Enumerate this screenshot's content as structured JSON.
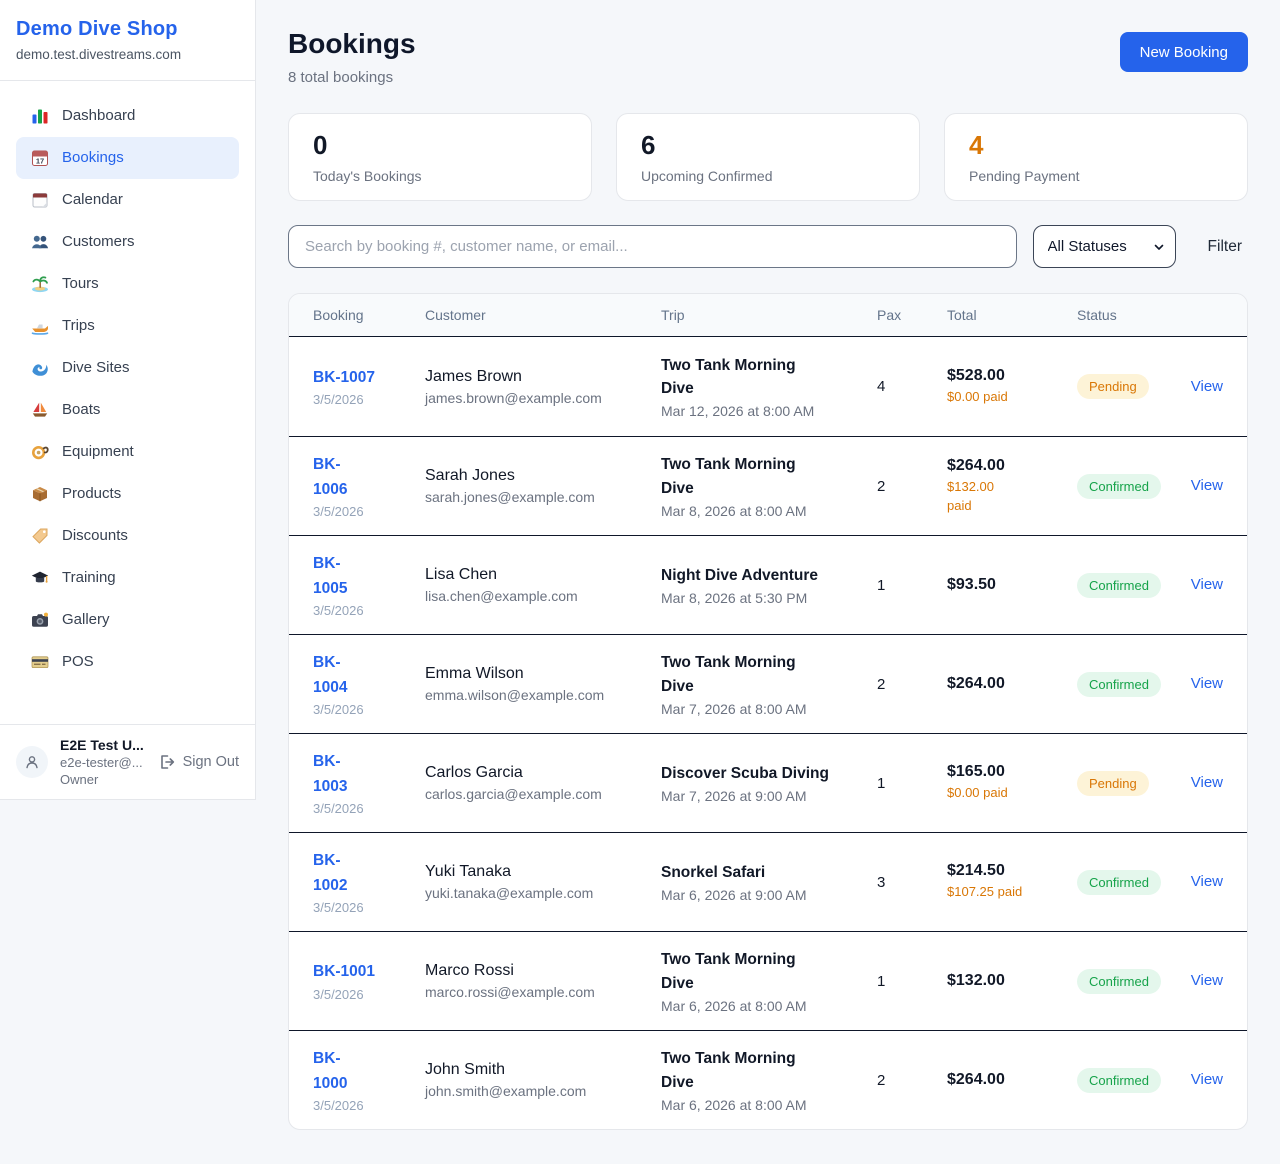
{
  "sidebar": {
    "title": "Demo Dive Shop",
    "subtitle": "demo.test.divestreams.com",
    "items": [
      {
        "icon": "dashboard-icon",
        "label": "Dashboard",
        "active": false
      },
      {
        "icon": "bookings-icon",
        "label": "Bookings",
        "active": true
      },
      {
        "icon": "calendar-icon",
        "label": "Calendar",
        "active": false
      },
      {
        "icon": "customers-icon",
        "label": "Customers",
        "active": false
      },
      {
        "icon": "tours-icon",
        "label": "Tours",
        "active": false
      },
      {
        "icon": "trips-icon",
        "label": "Trips",
        "active": false
      },
      {
        "icon": "dive-sites-icon",
        "label": "Dive Sites",
        "active": false
      },
      {
        "icon": "boats-icon",
        "label": "Boats",
        "active": false
      },
      {
        "icon": "equipment-icon",
        "label": "Equipment",
        "active": false
      },
      {
        "icon": "products-icon",
        "label": "Products",
        "active": false
      },
      {
        "icon": "discounts-icon",
        "label": "Discounts",
        "active": false
      },
      {
        "icon": "training-icon",
        "label": "Training",
        "active": false
      },
      {
        "icon": "gallery-icon",
        "label": "Gallery",
        "active": false
      },
      {
        "icon": "pos-icon",
        "label": "POS",
        "active": false
      }
    ],
    "user": {
      "name": "E2E Test U...",
      "email": "e2e-tester@...",
      "role": "Owner",
      "sign_out_label": "Sign Out"
    }
  },
  "header": {
    "title": "Bookings",
    "subtitle": "8 total bookings",
    "new_booking_label": "New Booking"
  },
  "stats": [
    {
      "value": "0",
      "label": "Today's Bookings",
      "color": "#111827"
    },
    {
      "value": "6",
      "label": "Upcoming Confirmed",
      "color": "#111827"
    },
    {
      "value": "4",
      "label": "Pending Payment",
      "color": "#d97706"
    }
  ],
  "filters": {
    "search_placeholder": "Search by booking #, customer name, or email...",
    "status_selected": "All Statuses",
    "filter_label": "Filter"
  },
  "table": {
    "columns": [
      "Booking",
      "Customer",
      "Trip",
      "Pax",
      "Total",
      "Status"
    ],
    "view_label": "View",
    "rows": [
      {
        "id": "BK-1007",
        "id_two_lines": false,
        "date": "3/5/2026",
        "customer": "James Brown",
        "email": "james.brown@example.com",
        "trip": "Two Tank Morning Dive",
        "trip_datetime": "Mar 12, 2026 at 8:00 AM",
        "pax": "4",
        "total": "$528.00",
        "paid": "$0.00 paid",
        "paid_two_lines": false,
        "status": "Pending"
      },
      {
        "id": "BK-1006",
        "id_two_lines": true,
        "date": "3/5/2026",
        "customer": "Sarah Jones",
        "email": "sarah.jones@example.com",
        "trip": "Two Tank Morning Dive",
        "trip_datetime": "Mar 8, 2026 at 8:00 AM",
        "pax": "2",
        "total": "$264.00",
        "paid": "$132.00 paid",
        "paid_two_lines": true,
        "status": "Confirmed"
      },
      {
        "id": "BK-1005",
        "id_two_lines": true,
        "date": "3/5/2026",
        "customer": "Lisa Chen",
        "email": "lisa.chen@example.com",
        "trip": "Night Dive Adventure",
        "trip_datetime": "Mar 8, 2026 at 5:30 PM",
        "pax": "1",
        "total": "$93.50",
        "paid": "",
        "paid_two_lines": false,
        "status": "Confirmed"
      },
      {
        "id": "BK-1004",
        "id_two_lines": true,
        "date": "3/5/2026",
        "customer": "Emma Wilson",
        "email": "emma.wilson@example.com",
        "trip": "Two Tank Morning Dive",
        "trip_datetime": "Mar 7, 2026 at 8:00 AM",
        "pax": "2",
        "total": "$264.00",
        "paid": "",
        "paid_two_lines": false,
        "status": "Confirmed"
      },
      {
        "id": "BK-1003",
        "id_two_lines": true,
        "date": "3/5/2026",
        "customer": "Carlos Garcia",
        "email": "carlos.garcia@example.com",
        "trip": "Discover Scuba Diving",
        "trip_datetime": "Mar 7, 2026 at 9:00 AM",
        "pax": "1",
        "total": "$165.00",
        "paid": "$0.00 paid",
        "paid_two_lines": false,
        "status": "Pending"
      },
      {
        "id": "BK-1002",
        "id_two_lines": true,
        "date": "3/5/2026",
        "customer": "Yuki Tanaka",
        "email": "yuki.tanaka@example.com",
        "trip": "Snorkel Safari",
        "trip_datetime": "Mar 6, 2026 at 9:00 AM",
        "pax": "3",
        "total": "$214.50",
        "paid": "$107.25 paid",
        "paid_two_lines": false,
        "status": "Confirmed"
      },
      {
        "id": "BK-1001",
        "id_two_lines": false,
        "date": "3/5/2026",
        "customer": "Marco Rossi",
        "email": "marco.rossi@example.com",
        "trip": "Two Tank Morning Dive",
        "trip_datetime": "Mar 6, 2026 at 8:00 AM",
        "pax": "1",
        "total": "$132.00",
        "paid": "",
        "paid_two_lines": false,
        "status": "Confirmed"
      },
      {
        "id": "BK-1000",
        "id_two_lines": true,
        "date": "3/5/2026",
        "customer": "John Smith",
        "email": "john.smith@example.com",
        "trip": "Two Tank Morning Dive",
        "trip_datetime": "Mar 6, 2026 at 8:00 AM",
        "pax": "2",
        "total": "$264.00",
        "paid": "",
        "paid_two_lines": false,
        "status": "Confirmed"
      }
    ]
  },
  "colors": {
    "accent": "#2563eb",
    "pending_text": "#d97706",
    "pending_badge_bg": "#fdf3d7",
    "confirmed_text": "#16a34a",
    "confirmed_badge_bg": "#e4f7ec",
    "row_divider": "#0f172a"
  }
}
